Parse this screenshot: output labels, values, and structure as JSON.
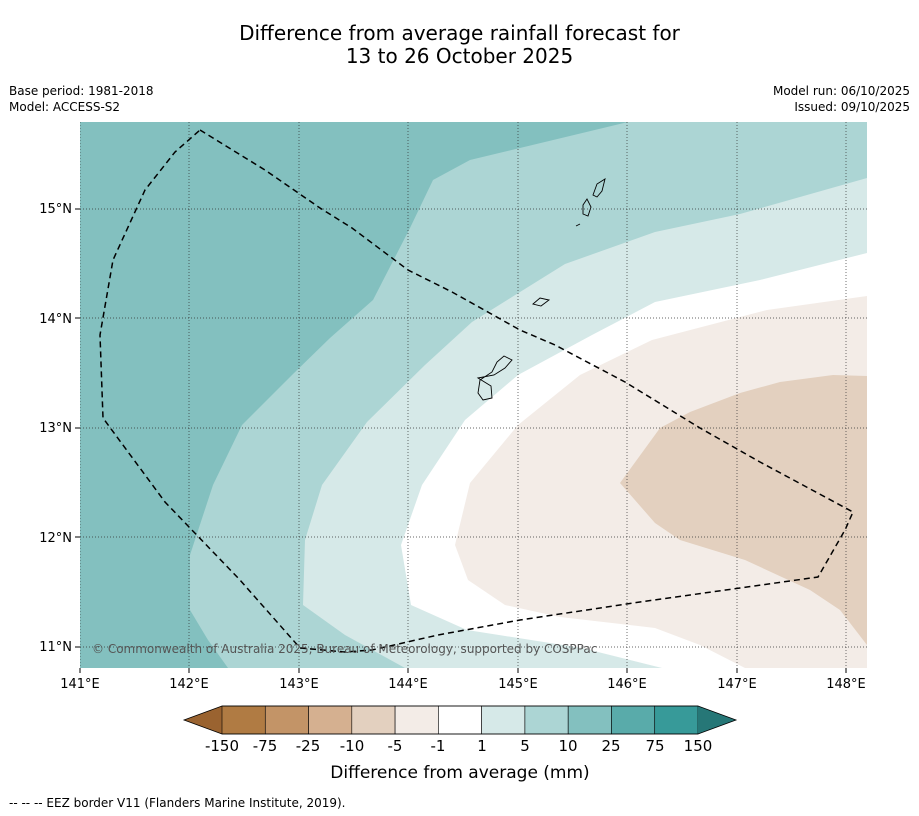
{
  "title": {
    "line1": "Difference from average rainfall forecast for",
    "line2": "13 to 26 October 2025"
  },
  "meta": {
    "base_period": "Base period: 1981-2018",
    "model": "Model: ACCESS-S2",
    "model_run": "Model run: 06/10/2025",
    "issued": "Issued: 09/10/2025"
  },
  "map": {
    "lat_labels": [
      "15°N",
      "14°N",
      "13°N",
      "12°N",
      "11°N"
    ],
    "lon_labels": [
      "141°E",
      "142°E",
      "143°E",
      "144°E",
      "145°E",
      "146°E",
      "147°E",
      "148°E"
    ],
    "copyright": "© Commonwealth of Australia 2025, Bureau of Meteorology, supported by COSPPac"
  },
  "colorbar": {
    "title": "Difference from average (mm)",
    "ticks": [
      "-150",
      "-75",
      "-25",
      "-10",
      "-5",
      "-1",
      "1",
      "5",
      "10",
      "25",
      "75",
      "150"
    ],
    "colors": [
      "#9a6330",
      "#b07b43",
      "#c39467",
      "#d5b090",
      "#e3d0bf",
      "#f3ece7",
      "#ffffff",
      "#d6e9e8",
      "#acd5d4",
      "#83c0bf",
      "#59abaa",
      "#379a99",
      "#267777"
    ]
  },
  "footnote": "-- -- -- EEZ border V11 (Flanders Marine Institute, 2019)."
}
